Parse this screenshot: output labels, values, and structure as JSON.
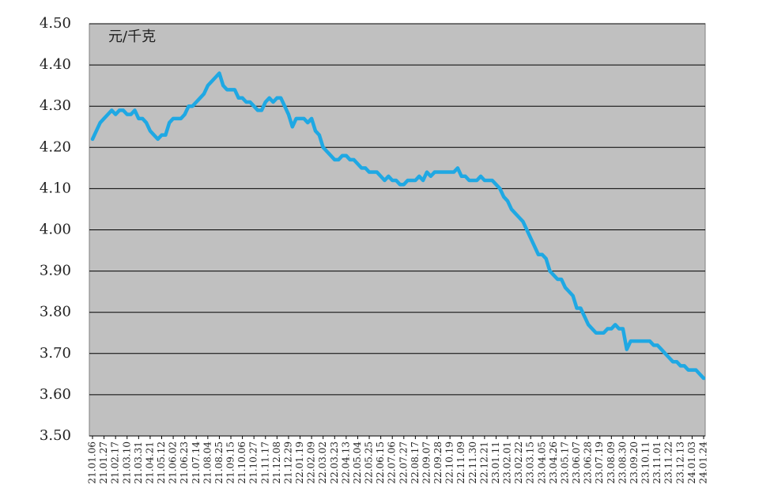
{
  "chart_data": {
    "type": "line",
    "unit_label": "元/千克",
    "categories": [
      "21.01.06",
      null,
      null,
      "21.01.27",
      null,
      null,
      "21.02.17",
      null,
      null,
      "21.03.10",
      null,
      null,
      "21.03.31",
      null,
      null,
      "21.04.21",
      null,
      null,
      "21.05.12",
      null,
      null,
      "21.06.02",
      null,
      null,
      "21.06.23",
      null,
      null,
      "21.07.14",
      null,
      null,
      "21.08.04",
      null,
      null,
      "21.08.25",
      null,
      null,
      "21.09.15",
      null,
      null,
      "21.10.06",
      null,
      null,
      "21.10.27",
      null,
      null,
      "21.11.17",
      null,
      null,
      "21.12.08",
      null,
      null,
      "21.12.29",
      null,
      null,
      "22.01.19",
      null,
      null,
      "22.02.09",
      null,
      null,
      "22.03.02",
      null,
      null,
      "22.03.23",
      null,
      null,
      "22.04.13",
      null,
      null,
      "22.05.04",
      null,
      null,
      "22.05.25",
      null,
      null,
      "22.06.15",
      null,
      null,
      "22.07.06",
      null,
      null,
      "22.07.27",
      null,
      null,
      "22.08.17",
      null,
      null,
      "22.09.07",
      null,
      null,
      "22.09.28",
      null,
      null,
      "22.10.19",
      null,
      null,
      "22.11.09",
      null,
      null,
      "22.11.30",
      null,
      null,
      "22.12.21",
      null,
      null,
      "23.01.11",
      null,
      null,
      "23.02.01",
      null,
      null,
      "23.02.22",
      null,
      null,
      "23.03.15",
      null,
      null,
      "23.04.05",
      null,
      null,
      "23.04.26",
      null,
      null,
      "23.05.17",
      null,
      null,
      "23.06.07",
      null,
      null,
      "23.06.28",
      null,
      null,
      "23.07.19",
      null,
      null,
      "23.08.09",
      null,
      null,
      "23.08.30",
      null,
      null,
      "23.09.20",
      null,
      null,
      "23.10.11",
      null,
      null,
      "23.11.01",
      null,
      null,
      "23.11.22",
      null,
      null,
      "23.12.13",
      null,
      null,
      "24.01.03",
      null,
      null,
      "24.01.24"
    ],
    "values": [
      4.22,
      4.24,
      4.26,
      4.27,
      4.28,
      4.29,
      4.28,
      4.29,
      4.29,
      4.28,
      4.28,
      4.29,
      4.27,
      4.27,
      4.26,
      4.24,
      4.23,
      4.22,
      4.23,
      4.23,
      4.26,
      4.27,
      4.27,
      4.27,
      4.28,
      4.3,
      4.3,
      4.31,
      4.32,
      4.33,
      4.35,
      4.36,
      4.37,
      4.38,
      4.35,
      4.34,
      4.34,
      4.34,
      4.32,
      4.32,
      4.31,
      4.31,
      4.3,
      4.29,
      4.29,
      4.31,
      4.32,
      4.31,
      4.32,
      4.32,
      4.3,
      4.28,
      4.25,
      4.27,
      4.27,
      4.27,
      4.26,
      4.27,
      4.24,
      4.23,
      4.2,
      4.19,
      4.18,
      4.17,
      4.17,
      4.18,
      4.18,
      4.17,
      4.17,
      4.16,
      4.15,
      4.15,
      4.14,
      4.14,
      4.14,
      4.13,
      4.12,
      4.13,
      4.12,
      4.12,
      4.11,
      4.11,
      4.12,
      4.12,
      4.12,
      4.13,
      4.12,
      4.14,
      4.13,
      4.14,
      4.14,
      4.14,
      4.14,
      4.14,
      4.14,
      4.15,
      4.13,
      4.13,
      4.12,
      4.12,
      4.12,
      4.13,
      4.12,
      4.12,
      4.12,
      4.11,
      4.1,
      4.08,
      4.07,
      4.05,
      4.04,
      4.03,
      4.02,
      4.0,
      3.98,
      3.96,
      3.94,
      3.94,
      3.93,
      3.9,
      3.89,
      3.88,
      3.88,
      3.86,
      3.85,
      3.84,
      3.81,
      3.81,
      3.79,
      3.77,
      3.76,
      3.75,
      3.75,
      3.75,
      3.76,
      3.76,
      3.77,
      3.76,
      3.76,
      3.71,
      3.73,
      3.73,
      3.73,
      3.73,
      3.73,
      3.73,
      3.72,
      3.72,
      3.71,
      3.7,
      3.69,
      3.68,
      3.68,
      3.67,
      3.67,
      3.66,
      3.66,
      3.66,
      3.65,
      3.64
    ],
    "color": "#1fa8e3",
    "ylim": [
      3.5,
      4.5
    ],
    "yticks": [
      {
        "value": 3.5,
        "label": "3.50"
      },
      {
        "value": 3.6,
        "label": "3.60"
      },
      {
        "value": 3.7,
        "label": "3.70"
      },
      {
        "value": 3.8,
        "label": "3.80"
      },
      {
        "value": 3.9,
        "label": "3.90"
      },
      {
        "value": 4.0,
        "label": "4.00"
      },
      {
        "value": 4.1,
        "label": "4.10"
      },
      {
        "value": 4.2,
        "label": "4.20"
      },
      {
        "value": 4.3,
        "label": "4.30"
      },
      {
        "value": 4.4,
        "label": "4.40"
      },
      {
        "value": 4.5,
        "label": "4.50"
      }
    ],
    "grid": true
  }
}
